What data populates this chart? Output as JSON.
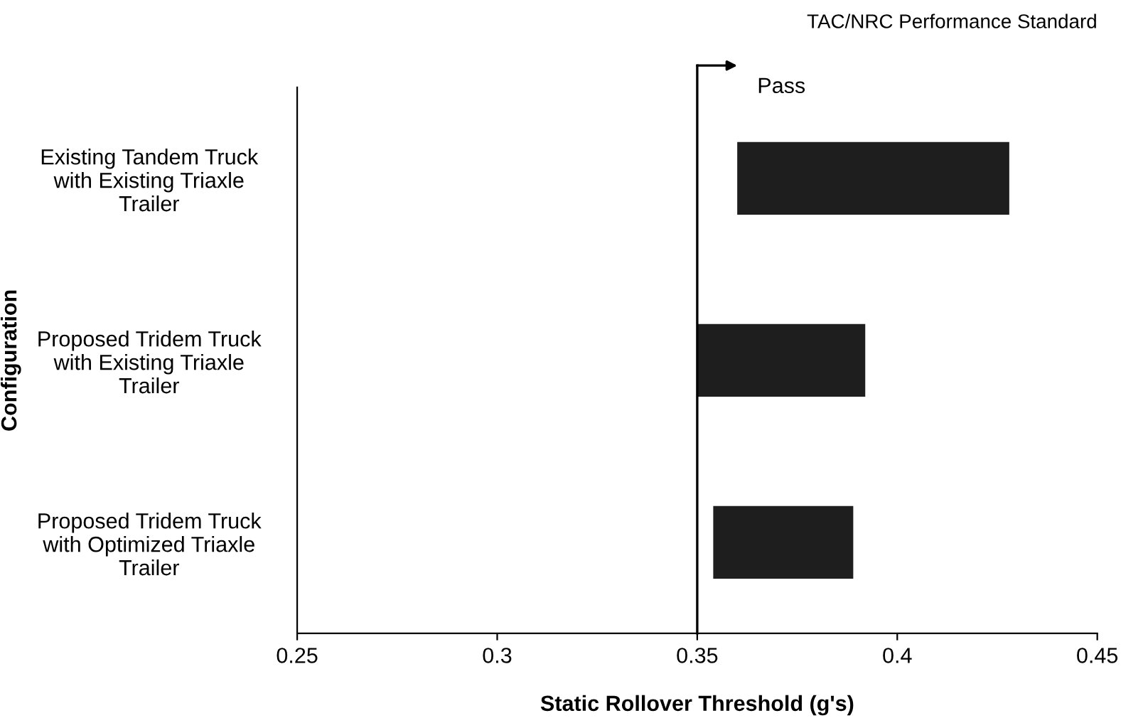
{
  "chart_data": {
    "type": "bar",
    "orientation": "horizontal",
    "title": "TAC/NRC Performance Standard",
    "xlabel": "Static Rollover Threshold (g's)",
    "ylabel": "Configuration",
    "categories": [
      "Existing Tandem Truck\nwith Existing Triaxle\nTrailer",
      "Proposed Tridem Truck\nwith Existing Triaxle\nTrailer",
      "Proposed Tridem Truck\nwith Optimized Triaxle\nTrailer"
    ],
    "base": [
      0.36,
      0.35,
      0.354
    ],
    "values": [
      0.068,
      0.042,
      0.035
    ],
    "color": "#1e1e1e",
    "xlim": [
      0.25,
      0.45
    ],
    "xticks": [
      0.25,
      0.3,
      0.35,
      0.4,
      0.45
    ],
    "ref_lines": [
      {
        "axis": "x",
        "value": 0.35,
        "label": "Pass",
        "color": "#000000"
      }
    ],
    "grid": false
  }
}
